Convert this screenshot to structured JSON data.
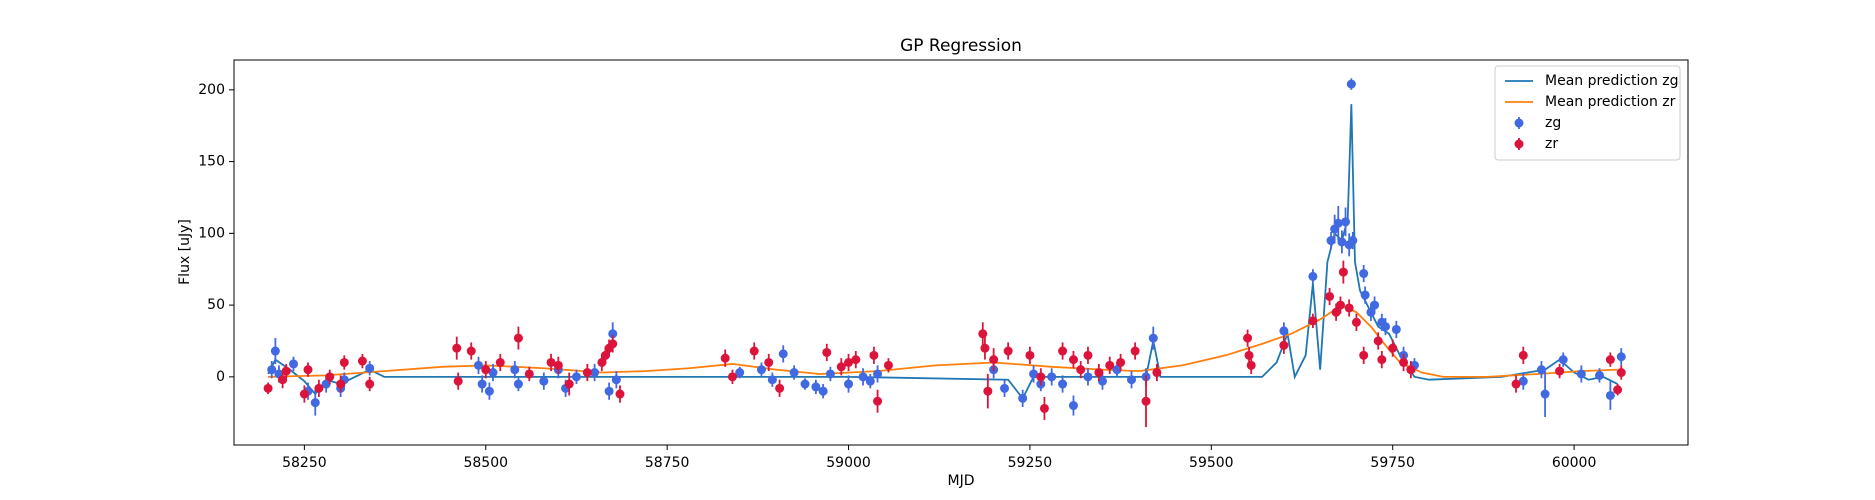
{
  "chart_data": {
    "type": "errorbar",
    "title": "GP Regression",
    "xlabel": "MJD",
    "ylabel": "Flux [uJy]",
    "xlim": [
      58153,
      60157
    ],
    "ylim": [
      -47.5,
      220.8
    ],
    "xticks": [
      58250,
      58500,
      58750,
      59000,
      59250,
      59500,
      59750,
      60000
    ],
    "yticks": [
      0,
      50,
      100,
      150,
      200
    ],
    "legend": "upper right",
    "series": [
      {
        "name": "Mean prediction zg",
        "type": "line",
        "color": "#1f77b4",
        "x": [
          58200,
          58210,
          58230,
          58250,
          58265,
          58280,
          58300,
          58340,
          58360,
          58500,
          59000,
          59220,
          59240,
          59255,
          59300,
          59410,
          59420,
          59430,
          59570,
          59590,
          59605,
          59615,
          59630,
          59640,
          59650,
          59660,
          59670,
          59680,
          59688,
          59693,
          59698,
          59705,
          59715,
          59730,
          59745,
          59760,
          59780,
          59800,
          59900,
          59960,
          59980,
          60000,
          60020,
          60040,
          60060
        ],
        "values": [
          2,
          12,
          5,
          -3,
          -12,
          -2,
          -5,
          5,
          0,
          0,
          0,
          -2,
          -15,
          0,
          0,
          0,
          25,
          0,
          0,
          10,
          30,
          0,
          15,
          65,
          5,
          80,
          100,
          95,
          110,
          190,
          80,
          60,
          50,
          35,
          30,
          15,
          0,
          -2,
          0,
          5,
          12,
          3,
          -2,
          0,
          -5
        ]
      },
      {
        "name": "Mean prediction zr",
        "type": "line",
        "color": "#ff7f0e",
        "x": [
          58200,
          58280,
          58360,
          58440,
          58500,
          58580,
          58660,
          58720,
          58780,
          58840,
          58900,
          58960,
          59040,
          59120,
          59200,
          59280,
          59350,
          59400,
          59460,
          59520,
          59570,
          59610,
          59650,
          59680,
          59700,
          59720,
          59740,
          59760,
          59790,
          59820,
          59880,
          59950,
          60010,
          60060
        ],
        "values": [
          0,
          1,
          4,
          7,
          8,
          6,
          3,
          4,
          6,
          9,
          5,
          2,
          4,
          8,
          10,
          7,
          5,
          4,
          8,
          15,
          23,
          30,
          40,
          50,
          45,
          35,
          22,
          10,
          3,
          0,
          0,
          2,
          4,
          5
        ]
      },
      {
        "name": "zg",
        "type": "errorbar",
        "color": "#4169e1",
        "x": [
          58205,
          58210,
          58215,
          58235,
          58255,
          58265,
          58280,
          58300,
          58305,
          58340,
          58490,
          58495,
          58505,
          58510,
          58540,
          58545,
          58580,
          58600,
          58610,
          58625,
          58650,
          58670,
          58675,
          58680,
          58850,
          58880,
          58895,
          58910,
          58925,
          58940,
          58955,
          58965,
          58975,
          59000,
          59020,
          59030,
          59040,
          59200,
          59215,
          59240,
          59255,
          59265,
          59280,
          59295,
          59310,
          59330,
          59350,
          59370,
          59390,
          59410,
          59420,
          59600,
          59640,
          59665,
          59670,
          59675,
          59680,
          59685,
          59690,
          59693,
          59695,
          59710,
          59712,
          59720,
          59725,
          59735,
          59740,
          59755,
          59765,
          59780,
          59930,
          59955,
          59960,
          59985,
          60010,
          60035,
          60050,
          60065
        ],
        "values": [
          5,
          18,
          2,
          9,
          -10,
          -18,
          -5,
          -8,
          -2,
          6,
          8,
          -5,
          -10,
          3,
          5,
          -5,
          -3,
          5,
          -8,
          0,
          3,
          -10,
          30,
          -2,
          3,
          5,
          -2,
          16,
          3,
          -5,
          -7,
          -10,
          2,
          -5,
          0,
          -3,
          2,
          5,
          -8,
          -15,
          2,
          -5,
          0,
          -5,
          -20,
          0,
          -3,
          5,
          -2,
          0,
          27,
          32,
          70,
          95,
          103,
          107,
          94,
          108,
          92,
          204,
          95,
          72,
          57,
          45,
          50,
          38,
          35,
          33,
          15,
          8,
          -3,
          5,
          -12,
          12,
          2,
          1,
          -13,
          14
        ],
        "errors": [
          6,
          9,
          6,
          5,
          6,
          9,
          6,
          6,
          5,
          5,
          6,
          6,
          6,
          6,
          6,
          5,
          6,
          6,
          6,
          5,
          6,
          6,
          8,
          6,
          4,
          5,
          5,
          6,
          5,
          4,
          5,
          5,
          5,
          6,
          6,
          5,
          6,
          6,
          6,
          6,
          6,
          5,
          6,
          6,
          7,
          6,
          6,
          5,
          6,
          6,
          8,
          6,
          5,
          6,
          10,
          12,
          8,
          10,
          8,
          4,
          6,
          6,
          6,
          6,
          6,
          6,
          6,
          6,
          6,
          5,
          6,
          6,
          16,
          5,
          6,
          5,
          10,
          6
        ]
      },
      {
        "name": "zr",
        "type": "errorbar",
        "color": "#dc143c",
        "x": [
          58200,
          58220,
          58225,
          58250,
          58255,
          58270,
          58285,
          58300,
          58305,
          58330,
          58340,
          58460,
          58462,
          58480,
          58500,
          58520,
          58545,
          58560,
          58590,
          58600,
          58615,
          58640,
          58660,
          58665,
          58670,
          58675,
          58685,
          58830,
          58840,
          58870,
          58890,
          58905,
          58970,
          58990,
          59000,
          59010,
          59035,
          59040,
          59055,
          59185,
          59188,
          59192,
          59200,
          59220,
          59250,
          59265,
          59270,
          59295,
          59310,
          59320,
          59330,
          59345,
          59360,
          59375,
          59395,
          59410,
          59425,
          59550,
          59552,
          59555,
          59600,
          59640,
          59663,
          59672,
          59678,
          59682,
          59690,
          59700,
          59710,
          59730,
          59735,
          59750,
          59765,
          59775,
          59920,
          59930,
          59980,
          60050,
          60060,
          60065
        ],
        "values": [
          -8,
          -2,
          4,
          -12,
          5,
          -8,
          0,
          -5,
          10,
          11,
          -5,
          20,
          -3,
          18,
          5,
          10,
          27,
          2,
          10,
          8,
          -5,
          3,
          10,
          15,
          20,
          23,
          -12,
          13,
          0,
          18,
          10,
          -8,
          17,
          7,
          10,
          12,
          15,
          -17,
          8,
          30,
          20,
          -10,
          12,
          18,
          15,
          0,
          -22,
          18,
          12,
          5,
          15,
          3,
          8,
          10,
          18,
          -17,
          3,
          27,
          15,
          8,
          22,
          39,
          56,
          45,
          50,
          73,
          48,
          38,
          15,
          25,
          12,
          20,
          10,
          5,
          -5,
          15,
          4,
          12,
          -9,
          3
        ],
        "errors": [
          4,
          6,
          5,
          6,
          5,
          6,
          5,
          6,
          5,
          5,
          5,
          8,
          6,
          6,
          6,
          6,
          8,
          5,
          6,
          6,
          8,
          6,
          6,
          6,
          6,
          6,
          6,
          6,
          5,
          6,
          6,
          6,
          6,
          6,
          6,
          6,
          6,
          8,
          5,
          8,
          8,
          12,
          8,
          6,
          6,
          6,
          8,
          6,
          6,
          6,
          6,
          6,
          6,
          6,
          6,
          18,
          6,
          6,
          6,
          6,
          6,
          5,
          6,
          6,
          6,
          8,
          6,
          6,
          6,
          6,
          6,
          6,
          6,
          6,
          6,
          6,
          5,
          5,
          4,
          5
        ]
      }
    ]
  }
}
